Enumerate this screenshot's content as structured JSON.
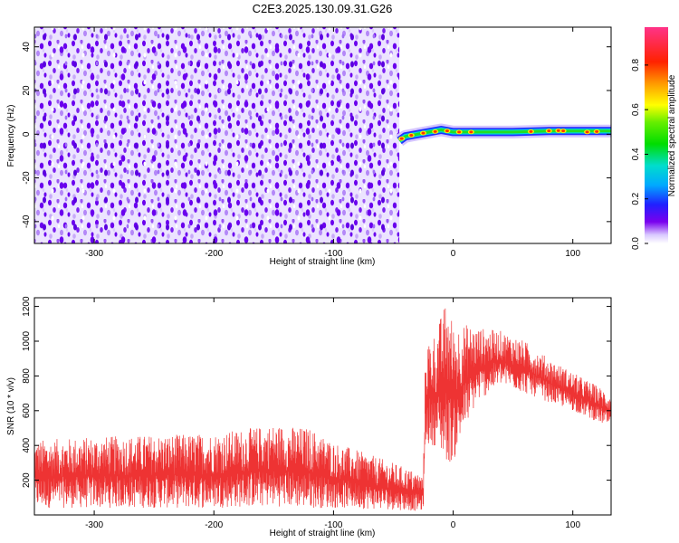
{
  "title": "C2E3.2025.130.09.31.G26",
  "colors": {
    "snr_line": "#ee3333",
    "noise_purple": "#6a00ee",
    "axis": "#000000"
  },
  "chart_data": [
    {
      "type": "heatmap",
      "xlabel": "Height of straight line (km)",
      "ylabel": "Frequency (Hz)",
      "xlim": [
        -350,
        132
      ],
      "ylim": [
        -50,
        49
      ],
      "xticks": [
        -300,
        -200,
        -100,
        0,
        100
      ],
      "xtick_labels": [
        "-300",
        "-200",
        "-100",
        "0",
        "100"
      ],
      "yticks": [
        -40,
        -20,
        0,
        20,
        40
      ],
      "ytick_labels": [
        "-40",
        "-20",
        "0",
        "20",
        "40"
      ],
      "noise_region_x": [
        -350,
        -45
      ],
      "signal_start_x": -45,
      "signal_trace": [
        {
          "x": -45,
          "y": -3
        },
        {
          "x": -40,
          "y": -1
        },
        {
          "x": -30,
          "y": 0
        },
        {
          "x": -20,
          "y": 1
        },
        {
          "x": -10,
          "y": 2
        },
        {
          "x": 0,
          "y": 1
        },
        {
          "x": 20,
          "y": 1
        },
        {
          "x": 50,
          "y": 1
        },
        {
          "x": 80,
          "y": 1.5
        },
        {
          "x": 100,
          "y": 1.5
        },
        {
          "x": 132,
          "y": 1.5
        }
      ],
      "colorbar": {
        "label": "Normalized spectral amplitude",
        "range": [
          0,
          0.97
        ],
        "ticks": [
          0.0,
          0.2,
          0.4,
          0.6,
          0.8
        ],
        "tick_labels": [
          "0.0",
          "0.2",
          "0.4",
          "0.6",
          "0.8"
        ]
      }
    },
    {
      "type": "line",
      "xlabel": "Height of straight line (km)",
      "ylabel": "SNR (10 * v/v)",
      "xlim": [
        -350,
        132
      ],
      "ylim": [
        0,
        1250
      ],
      "xticks": [
        -300,
        -200,
        -100,
        0,
        100
      ],
      "xtick_labels": [
        "-300",
        "-200",
        "-100",
        "0",
        "100"
      ],
      "yticks": [
        200,
        400,
        600,
        800,
        1000,
        1200
      ],
      "ytick_labels": [
        "200",
        "400",
        "600",
        "800",
        "1000",
        "1200"
      ],
      "series": [
        {
          "envelope_x": [
            -350,
            -300,
            -250,
            -200,
            -150,
            -120,
            -100,
            -50,
            -25,
            -23,
            -15,
            -5,
            0,
            10,
            20,
            40,
            60,
            80,
            100,
            132
          ],
          "envelope_low": [
            40,
            40,
            40,
            40,
            50,
            40,
            40,
            30,
            20,
            400,
            400,
            300,
            300,
            500,
            650,
            750,
            700,
            650,
            600,
            500
          ],
          "envelope_high": [
            430,
            450,
            460,
            470,
            520,
            500,
            420,
            300,
            230,
            1000,
            1050,
            1250,
            1100,
            1100,
            1080,
            1060,
            1000,
            900,
            820,
            700
          ]
        }
      ]
    }
  ]
}
